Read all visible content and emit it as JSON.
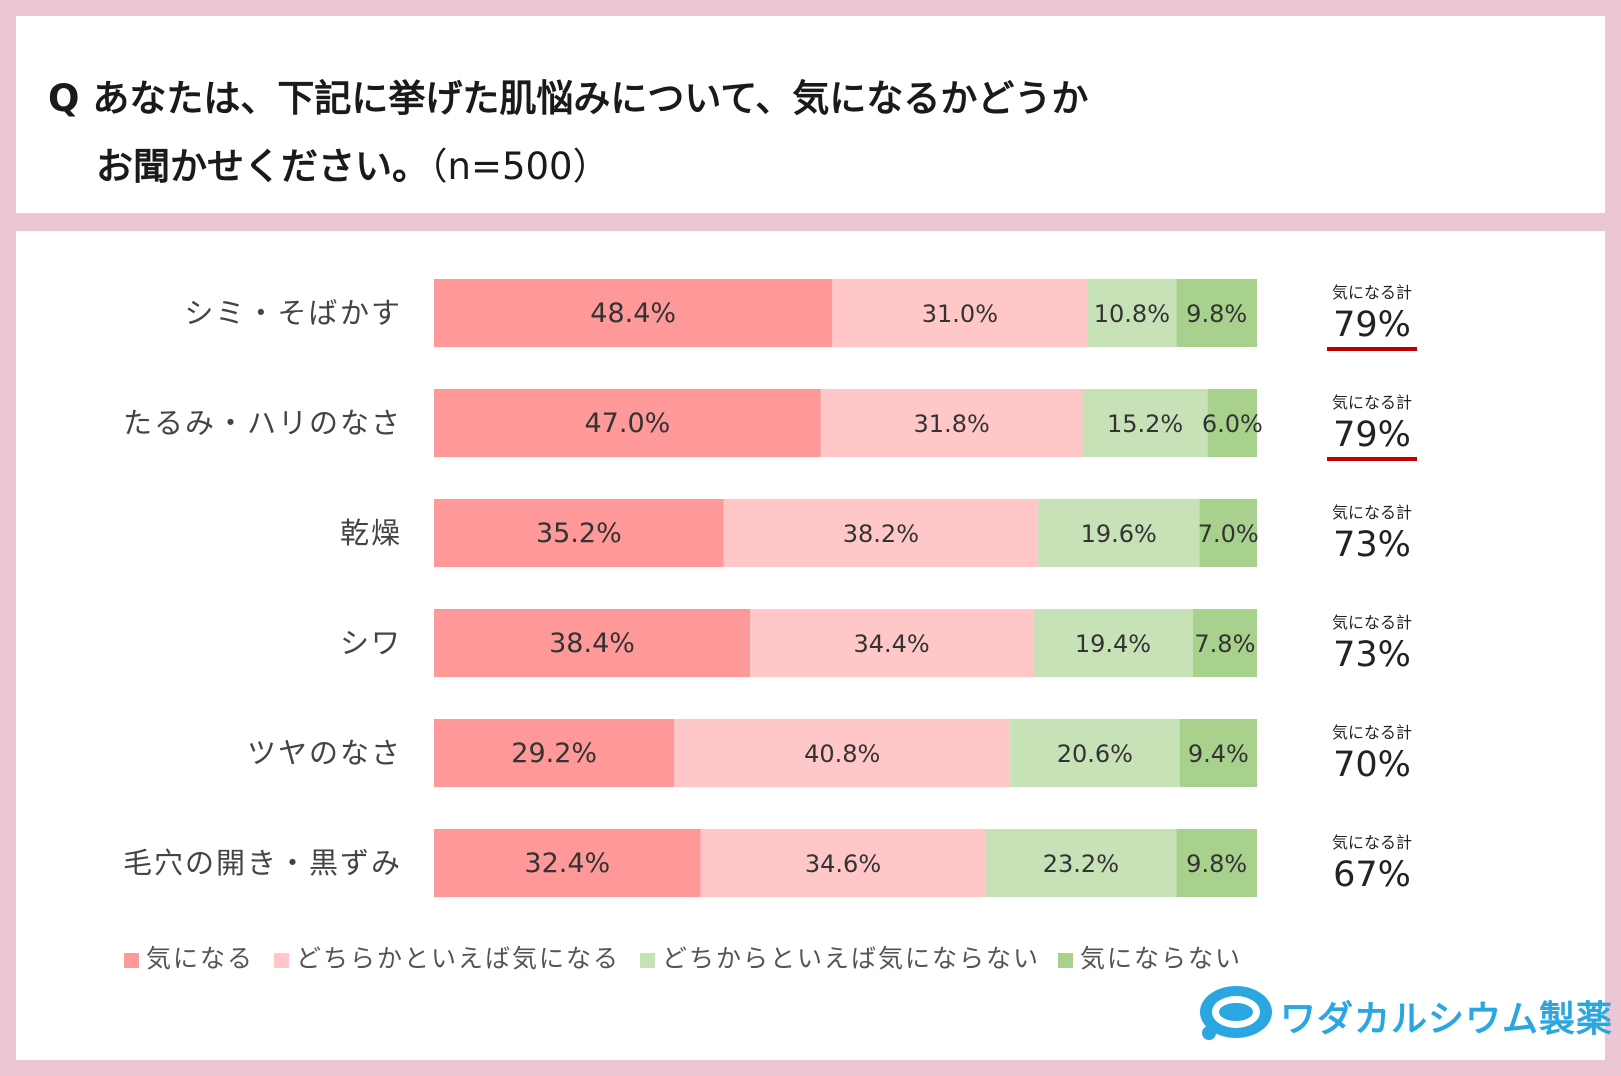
{
  "title": {
    "line1": "Q あなたは、下記に挙げた肌悩みについて、気になるかどうか",
    "line2": "お聞かせください。",
    "sample": "（n=500）"
  },
  "chart_data": {
    "type": "bar",
    "orientation": "horizontal",
    "stacked": "100%",
    "categories": [
      "シミ・そばかす",
      "たるみ・ハリのなさ",
      "乾燥",
      "シワ",
      "ツヤのなさ",
      "毛穴の開き・黒ずみ"
    ],
    "series": [
      {
        "name": "気になる",
        "color": "#ff9999",
        "values": [
          48.4,
          47.0,
          35.2,
          38.4,
          29.2,
          32.4
        ]
      },
      {
        "name": "どちらかといえば気になる",
        "color": "#ffc7c7",
        "values": [
          31.0,
          31.8,
          38.2,
          34.4,
          40.8,
          34.6
        ]
      },
      {
        "name": "どちからといえば気にならない",
        "color": "#c8e2b8",
        "values": [
          10.8,
          15.2,
          19.6,
          19.4,
          20.6,
          23.2
        ]
      },
      {
        "name": "気にならない",
        "color": "#a9d18e",
        "values": [
          9.8,
          6.0,
          7.0,
          7.8,
          9.4,
          9.8
        ]
      }
    ],
    "value_suffix": "%",
    "totals": {
      "label": "気になる計",
      "values": [
        "79%",
        "79%",
        "73%",
        "73%",
        "70%",
        "67%"
      ],
      "underlined": [
        true,
        true,
        false,
        false,
        false,
        false
      ],
      "underline_color": "#c00000"
    },
    "legend_position": "bottom-left"
  },
  "logo": {
    "text": "ワダカルシウム製薬",
    "color": "#2aa7e0"
  }
}
